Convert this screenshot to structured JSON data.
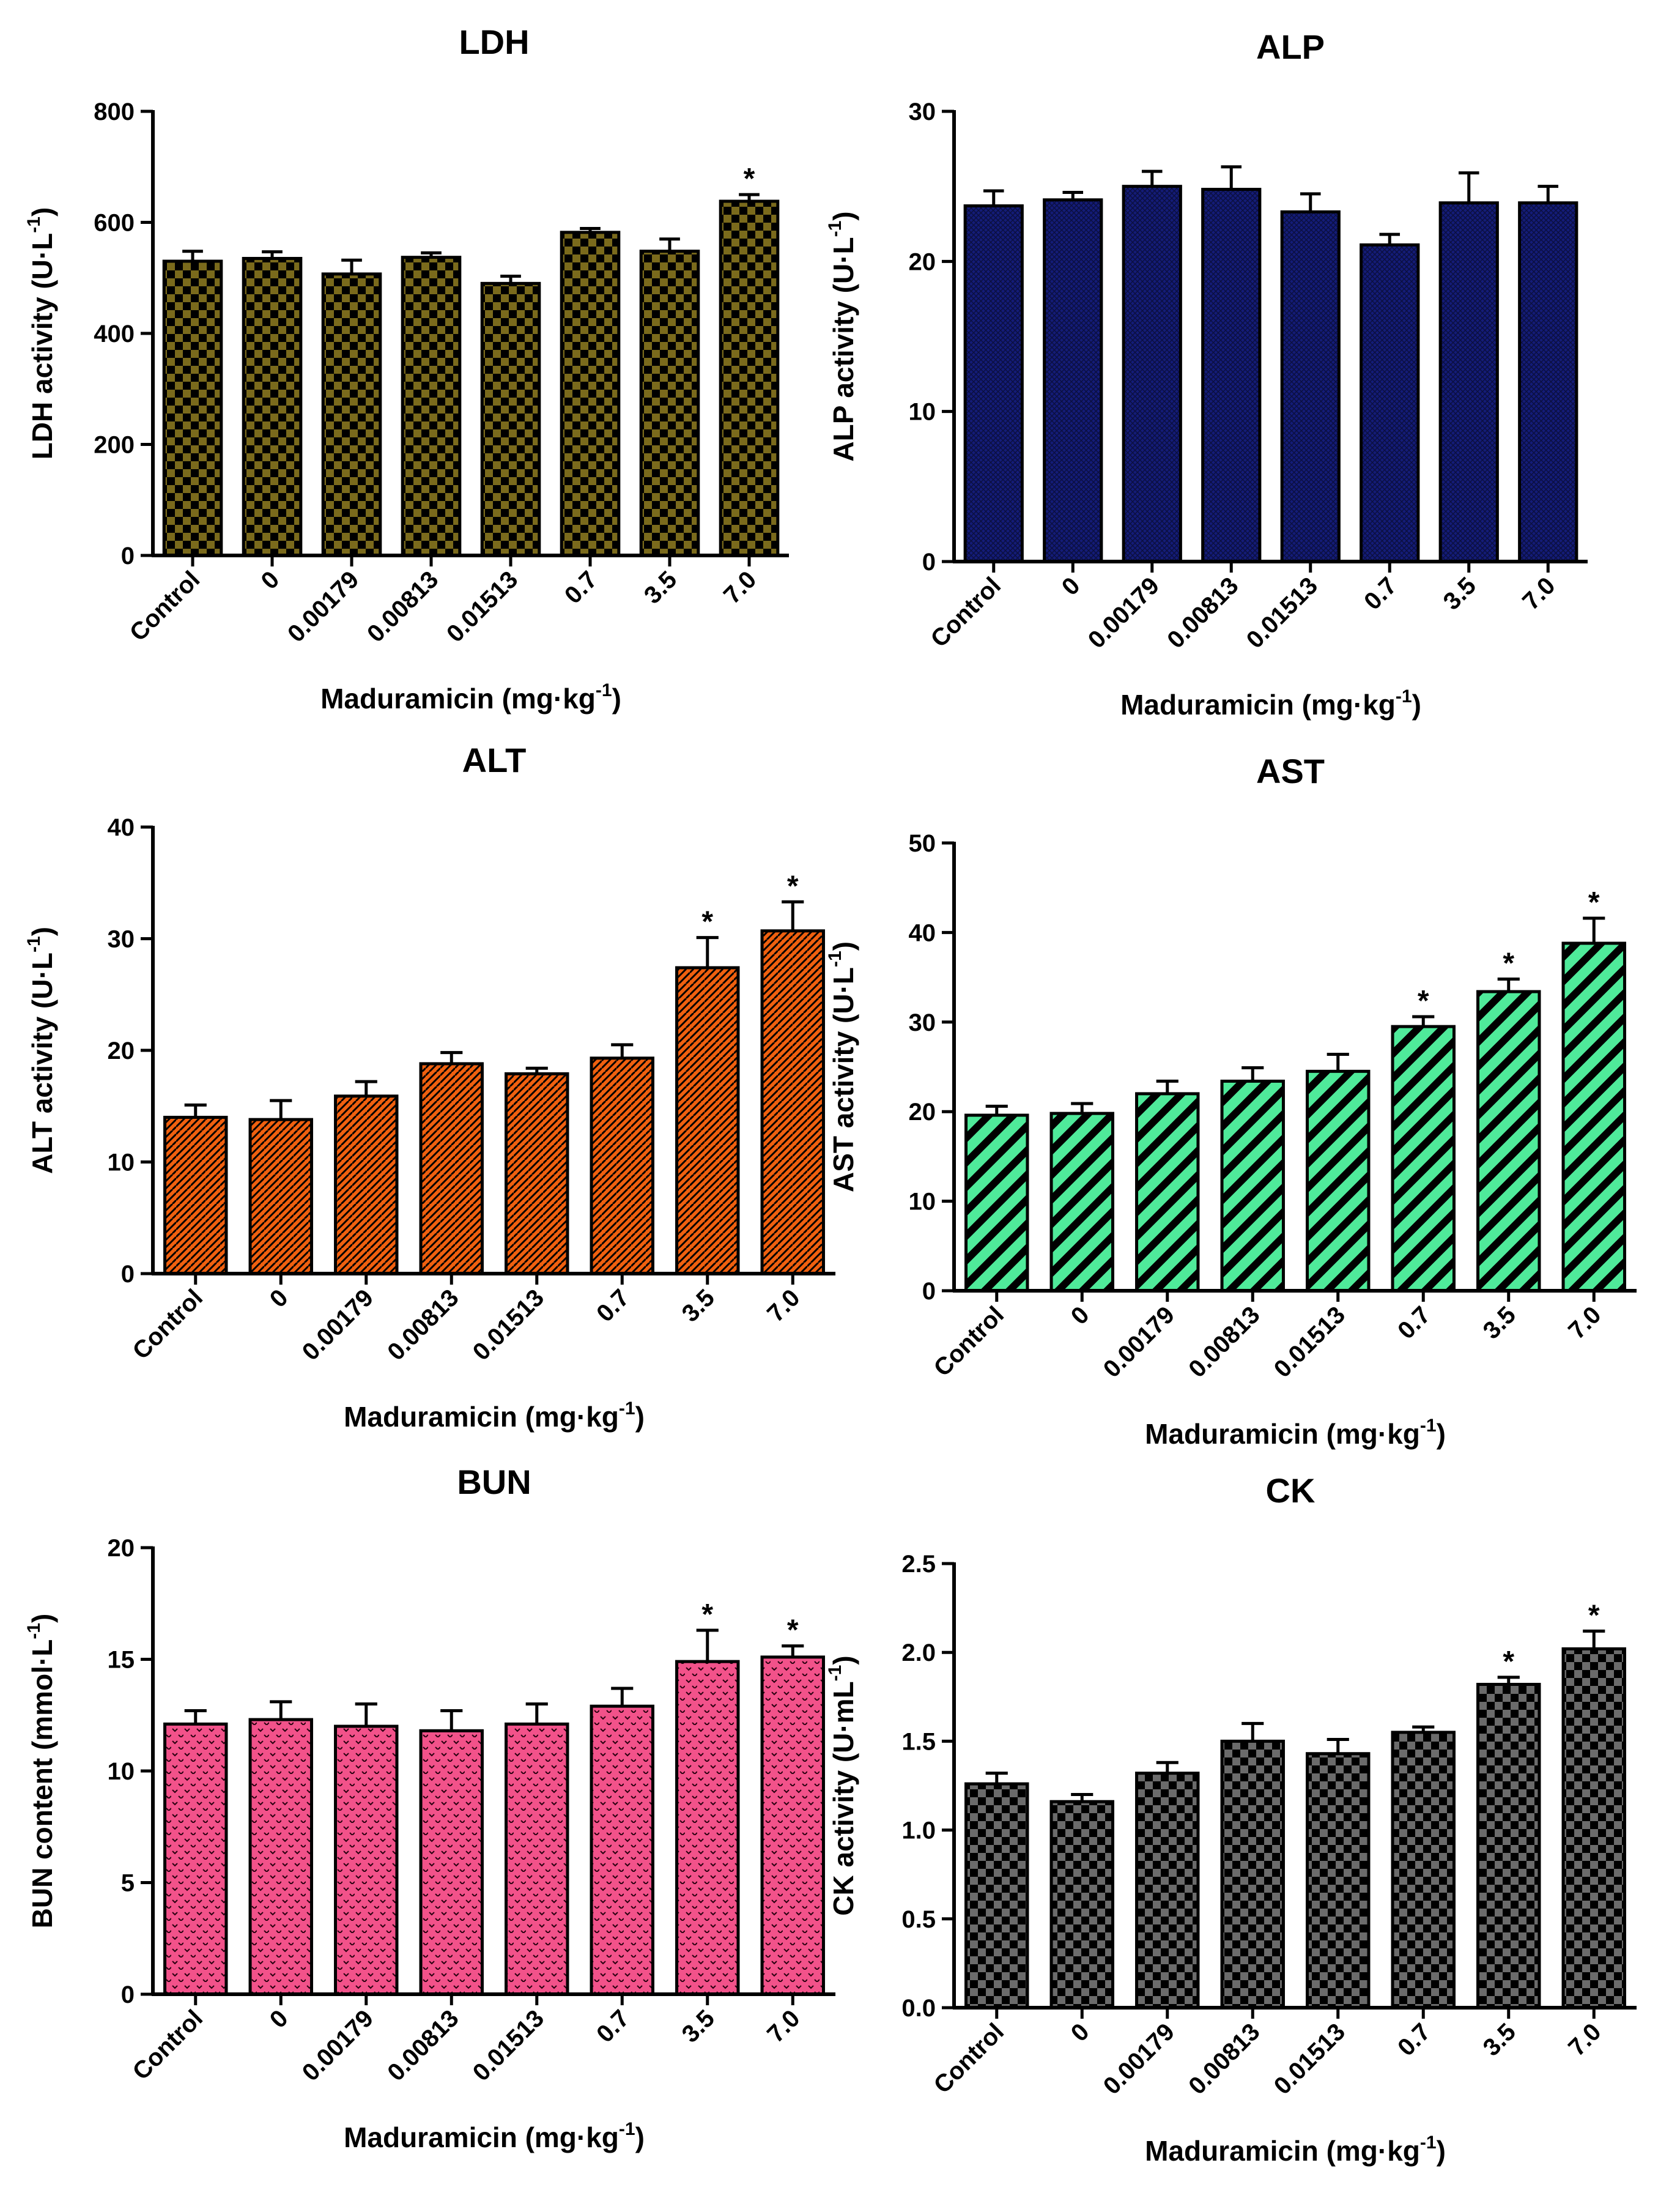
{
  "chart_data": [
    {
      "type": "bar",
      "title": "LDH",
      "xlabel_main": "Maduramicin (mg·kg",
      "xlabel_sup": "-1",
      "xlabel_end": ")",
      "ylabel_main": "LDH activity (U·L",
      "ylabel_sup": "-1",
      "ylabel_end": ")",
      "categories": [
        "Control",
        "0",
        "0.00179",
        "0.00813",
        "0.01513",
        "0.7",
        "3.5",
        "7.0"
      ],
      "values": [
        530,
        535,
        507,
        537,
        490,
        582,
        548,
        638
      ],
      "errors": [
        18,
        12,
        25,
        8,
        13,
        7,
        22,
        12
      ],
      "significant": [
        "",
        "",
        "",
        "",
        "",
        "",
        "",
        "*"
      ],
      "ylim": [
        0,
        800
      ],
      "yticks": [
        "0",
        "200",
        "400",
        "600",
        "800"
      ],
      "color": "#7a6a1c",
      "pattern": "checker"
    },
    {
      "type": "bar",
      "title": "ALP",
      "xlabel_main": "Maduramicin (mg·kg",
      "xlabel_sup": "-1",
      "xlabel_end": ")",
      "ylabel_main": "ALP activity (U·L",
      "ylabel_sup": "-1",
      "ylabel_end": ")",
      "categories": [
        "Control",
        "0",
        "0.00179",
        "0.00813",
        "0.01513",
        "0.7",
        "3.5",
        "7.0"
      ],
      "values": [
        23.7,
        24.1,
        25.0,
        24.8,
        23.3,
        21.1,
        23.9,
        23.9
      ],
      "errors": [
        1.0,
        0.5,
        1.0,
        1.5,
        1.2,
        0.7,
        2.0,
        1.1
      ],
      "significant": [
        "",
        "",
        "",
        "",
        "",
        "",
        "",
        ""
      ],
      "ylim": [
        0,
        30
      ],
      "yticks": [
        "0",
        "10",
        "20",
        "30"
      ],
      "color": "#141c78",
      "pattern": "crosshatch"
    },
    {
      "type": "bar",
      "title": "ALT",
      "xlabel_main": "Maduramicin (mg·kg",
      "xlabel_sup": "-1",
      "xlabel_end": ")",
      "ylabel_main": "ALT activity (U·L",
      "ylabel_sup": "-1",
      "ylabel_end": ")",
      "categories": [
        "Control",
        "0",
        "0.00179",
        "0.00813",
        "0.01513",
        "0.7",
        "3.5",
        "7.0"
      ],
      "values": [
        14.0,
        13.8,
        15.9,
        18.8,
        17.9,
        19.3,
        27.4,
        30.7
      ],
      "errors": [
        1.1,
        1.7,
        1.3,
        1.0,
        0.5,
        1.2,
        2.7,
        2.6
      ],
      "significant": [
        "",
        "",
        "",
        "",
        "",
        "",
        "*",
        "*"
      ],
      "ylim": [
        0,
        40
      ],
      "yticks": [
        "0",
        "10",
        "20",
        "30",
        "40"
      ],
      "color": "#f0600f",
      "pattern": "brick"
    },
    {
      "type": "bar",
      "title": "AST",
      "xlabel_main": "Maduramicin (mg·kg",
      "xlabel_sup": "-1",
      "xlabel_end": ")",
      "ylabel_main": "AST activity (U·L",
      "ylabel_sup": "-1",
      "ylabel_end": ")",
      "categories": [
        "Control",
        "0",
        "0.00179",
        "0.00813",
        "0.01513",
        "0.7",
        "3.5",
        "7.0"
      ],
      "values": [
        19.6,
        19.8,
        22.0,
        23.4,
        24.5,
        29.5,
        33.4,
        38.8
      ],
      "errors": [
        1.0,
        1.1,
        1.4,
        1.5,
        1.9,
        1.1,
        1.4,
        2.8
      ],
      "significant": [
        "",
        "",
        "",
        "",
        "",
        "*",
        "*",
        "*"
      ],
      "ylim": [
        0,
        50
      ],
      "yticks": [
        "0",
        "10",
        "20",
        "30",
        "40",
        "50"
      ],
      "color": "#4fea9a",
      "pattern": "diagonal"
    },
    {
      "type": "bar",
      "title": "BUN",
      "xlabel_main": "Maduramicin (mg·kg",
      "xlabel_sup": "-1",
      "xlabel_end": ")",
      "ylabel_main": "BUN content (mmol·L",
      "ylabel_sup": "-1",
      "ylabel_end": ")",
      "categories": [
        "Control",
        "0",
        "0.00179",
        "0.00813",
        "0.01513",
        "0.7",
        "3.5",
        "7.0"
      ],
      "values": [
        12.1,
        12.3,
        12.0,
        11.8,
        12.1,
        12.9,
        14.9,
        15.1
      ],
      "errors": [
        0.6,
        0.8,
        1.0,
        0.9,
        0.9,
        0.8,
        1.4,
        0.5
      ],
      "significant": [
        "",
        "",
        "",
        "",
        "",
        "",
        "*",
        "*"
      ],
      "ylim": [
        0,
        20
      ],
      "yticks": [
        "0",
        "5",
        "10",
        "15",
        "20"
      ],
      "color": "#f2528a",
      "pattern": "wave"
    },
    {
      "type": "bar",
      "title": "CK",
      "xlabel_main": "Maduramicin (mg·kg",
      "xlabel_sup": "-1",
      "xlabel_end": ")",
      "ylabel_main": "CK activity (U·mL",
      "ylabel_sup": "-1",
      "ylabel_end": ")",
      "categories": [
        "Control",
        "0",
        "0.00179",
        "0.00813",
        "0.01513",
        "0.7",
        "3.5",
        "7.0"
      ],
      "values": [
        1.26,
        1.16,
        1.32,
        1.5,
        1.43,
        1.55,
        1.82,
        2.02
      ],
      "errors": [
        0.06,
        0.04,
        0.06,
        0.1,
        0.08,
        0.03,
        0.04,
        0.1
      ],
      "significant": [
        "",
        "",
        "",
        "",
        "",
        "",
        "*",
        "*"
      ],
      "ylim": [
        0,
        2.5
      ],
      "yticks": [
        "0.0",
        "0.5",
        "1.0",
        "1.5",
        "2.0",
        "2.5"
      ],
      "color": "#6b6b6b",
      "pattern": "checker"
    }
  ]
}
